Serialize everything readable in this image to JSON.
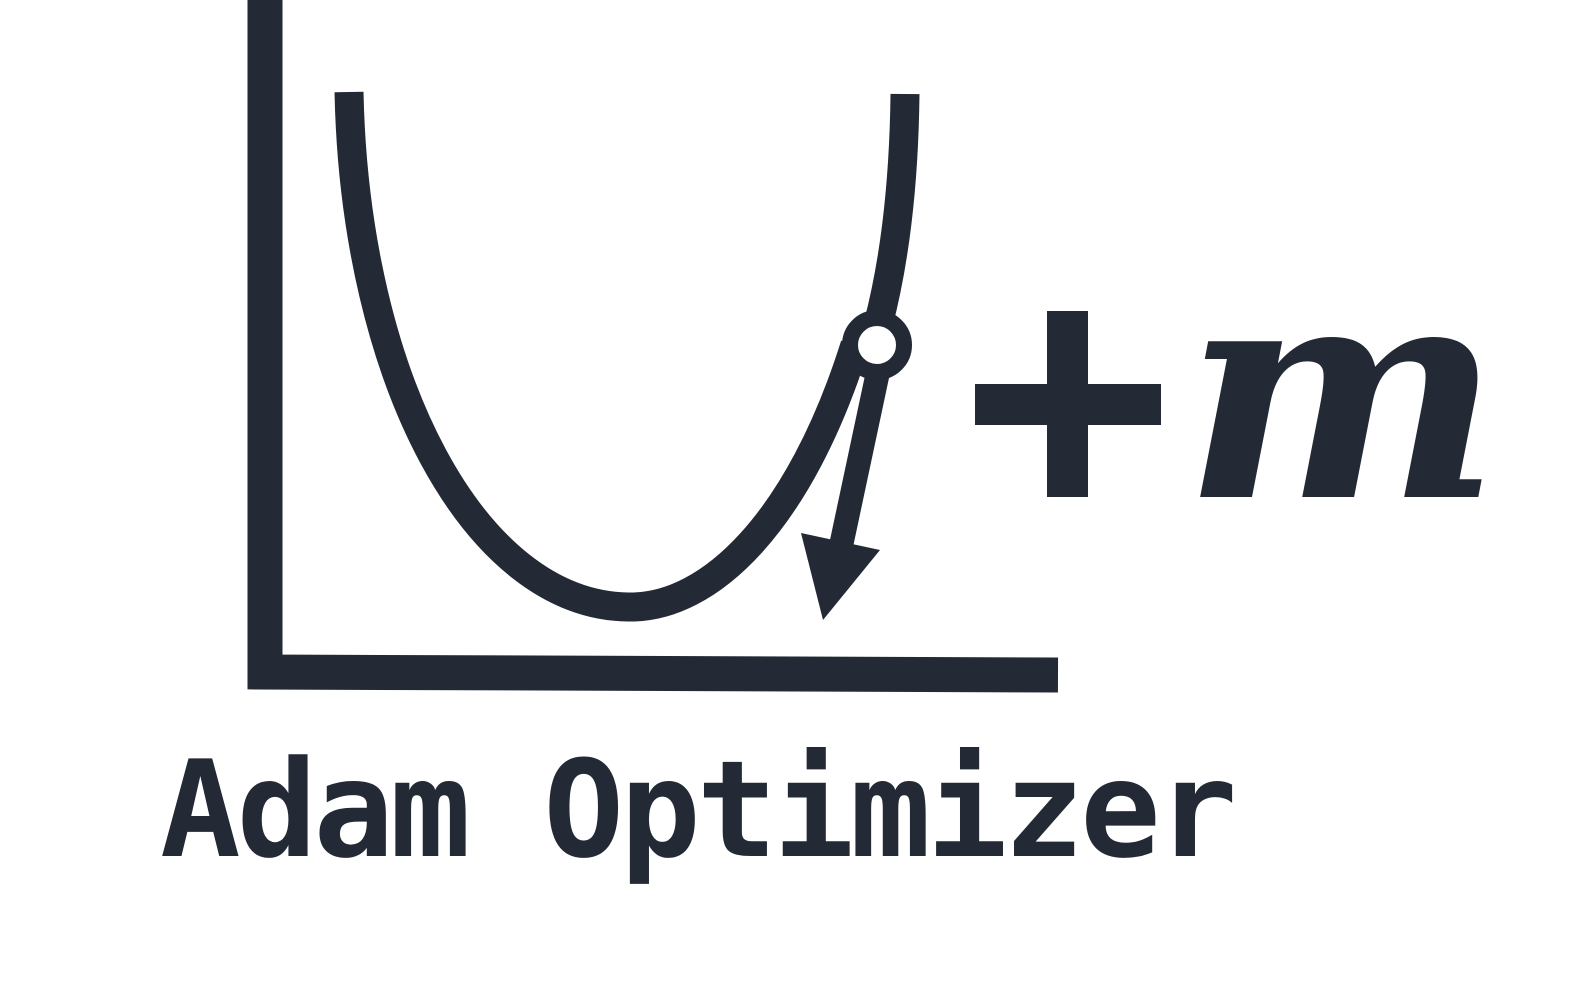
{
  "colors": {
    "ink": "#232a35",
    "background": "#ffffff"
  },
  "icons": {
    "plus": "plus-icon",
    "momentum": "italic-m-symbol"
  },
  "momentum_symbol": "m",
  "caption": "Adam Optimizer"
}
